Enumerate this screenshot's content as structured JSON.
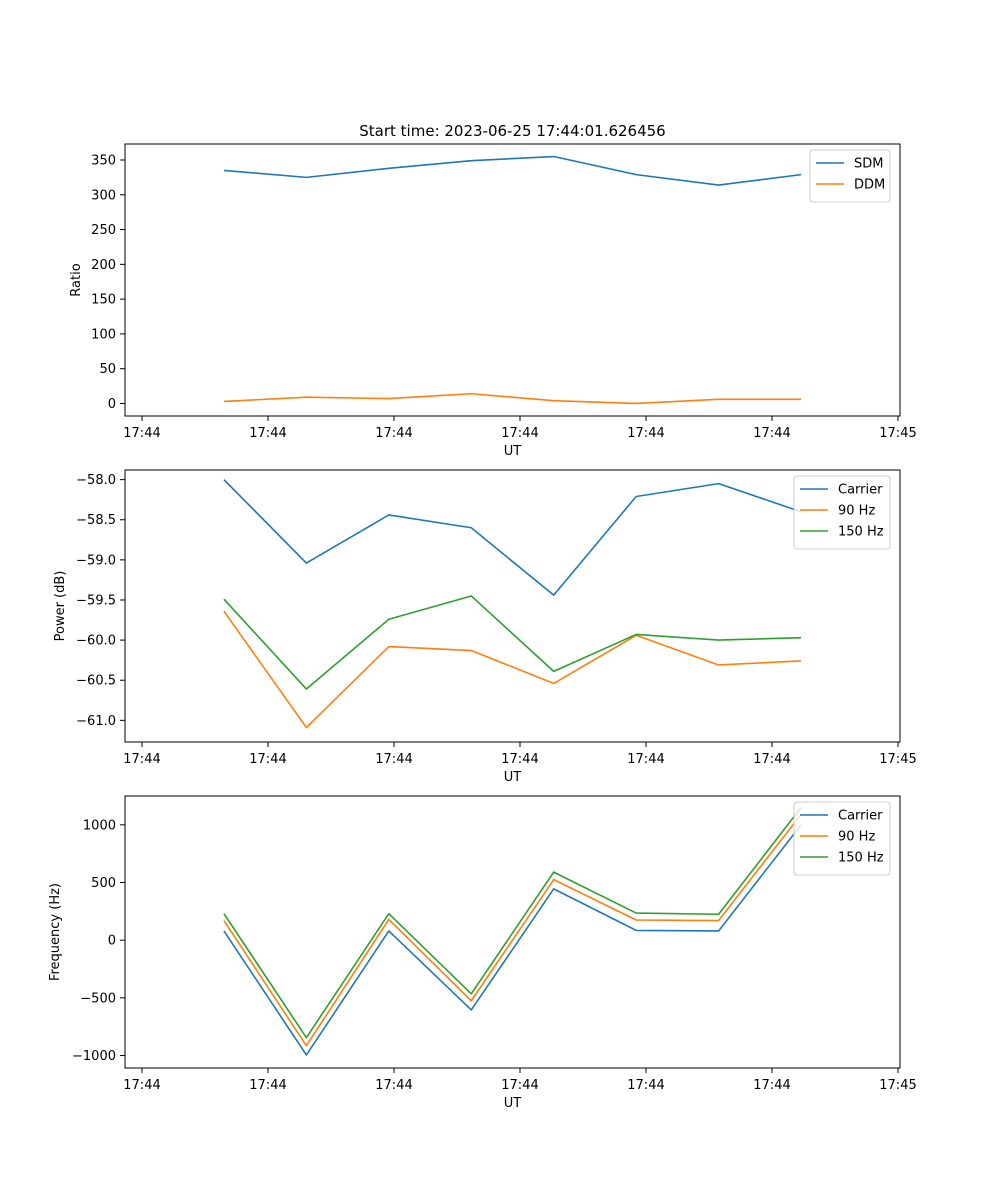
{
  "chart_data": [
    {
      "type": "line",
      "title": "Start time: 2023-06-25 17:44:01.626456",
      "xlabel": "UT",
      "ylabel": "Ratio",
      "x_tick_labels": [
        "17:44",
        "17:44",
        "17:44",
        "17:44",
        "17:44",
        "17:44",
        "17:45"
      ],
      "x": [
        0.5,
        1.0,
        1.5,
        2.0,
        2.5,
        3.0,
        3.5,
        4.0
      ],
      "xlim": [
        -0.1,
        4.6
      ],
      "ylim": [
        -18,
        373
      ],
      "y_ticks": [
        0,
        50,
        100,
        150,
        200,
        250,
        300,
        350
      ],
      "legend": "top-right",
      "grid": false,
      "series": [
        {
          "name": "SDM",
          "color": "#1f77b4",
          "values": [
            335,
            325,
            338,
            349,
            355,
            329,
            314,
            329
          ]
        },
        {
          "name": "DDM",
          "color": "#ff7f0e",
          "values": [
            3,
            9,
            7,
            14,
            4,
            0,
            6,
            6
          ]
        }
      ]
    },
    {
      "type": "line",
      "title": "",
      "xlabel": "UT",
      "ylabel": "Power (dB)",
      "x_tick_labels": [
        "17:44",
        "17:44",
        "17:44",
        "17:44",
        "17:44",
        "17:44",
        "17:45"
      ],
      "x": [
        0.5,
        1.0,
        1.5,
        2.0,
        2.5,
        3.0,
        3.5,
        4.0
      ],
      "xlim": [
        -0.1,
        4.6
      ],
      "ylim": [
        -61.27,
        -57.88
      ],
      "y_ticks": [
        -61.0,
        -60.5,
        -60.0,
        -59.5,
        -59.0,
        -58.5,
        -58.0
      ],
      "y_tick_labels": [
        "−61.0",
        "−60.5",
        "−60.0",
        "−59.5",
        "−59.0",
        "−58.5",
        "−58.0"
      ],
      "legend": "top-right",
      "grid": false,
      "series": [
        {
          "name": "Carrier",
          "color": "#1f77b4",
          "values": [
            -58.0,
            -59.04,
            -58.44,
            -58.6,
            -59.44,
            -58.21,
            -58.05,
            -58.4
          ]
        },
        {
          "name": "90 Hz",
          "color": "#ff7f0e",
          "values": [
            -59.64,
            -61.09,
            -60.08,
            -60.13,
            -60.54,
            -59.94,
            -60.31,
            -60.26
          ]
        },
        {
          "name": "150 Hz",
          "color": "#2ca02c",
          "values": [
            -59.49,
            -60.61,
            -59.74,
            -59.45,
            -60.39,
            -59.93,
            -60.0,
            -59.97
          ]
        }
      ]
    },
    {
      "type": "line",
      "title": "",
      "xlabel": "UT",
      "ylabel": "Frequency (Hz)",
      "x_tick_labels": [
        "17:44",
        "17:44",
        "17:44",
        "17:44",
        "17:44",
        "17:44",
        "17:45"
      ],
      "x": [
        0.5,
        1.0,
        1.5,
        2.0,
        2.5,
        3.0,
        3.5,
        4.0
      ],
      "xlim": [
        -0.1,
        4.6
      ],
      "ylim": [
        -1108,
        1250
      ],
      "y_ticks": [
        -1000,
        -500,
        0,
        500,
        1000
      ],
      "y_tick_labels": [
        "−1000",
        "−500",
        "0",
        "500",
        "1000"
      ],
      "legend": "top-right",
      "grid": false,
      "series": [
        {
          "name": "Carrier",
          "color": "#1f77b4",
          "values": [
            80,
            -995,
            80,
            -605,
            445,
            85,
            80,
            1000
          ]
        },
        {
          "name": "90 Hz",
          "color": "#ff7f0e",
          "values": [
            170,
            -915,
            180,
            -525,
            525,
            175,
            170,
            1090
          ]
        },
        {
          "name": "150 Hz",
          "color": "#2ca02c",
          "values": [
            230,
            -845,
            230,
            -465,
            590,
            235,
            225,
            1150
          ]
        }
      ]
    }
  ]
}
